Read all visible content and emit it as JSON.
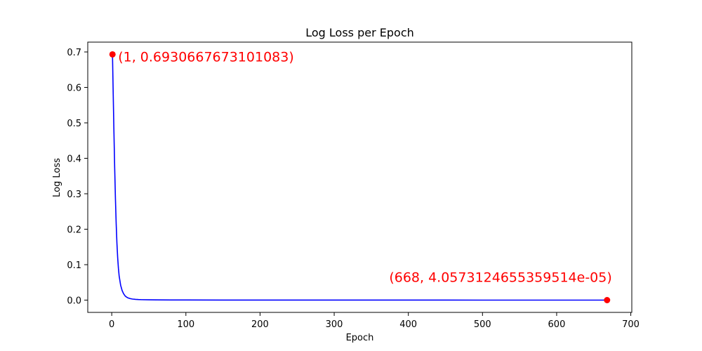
{
  "chart_data": {
    "type": "line",
    "title": "Log Loss per Epoch",
    "xlabel": "Epoch",
    "ylabel": "Log Loss",
    "xlim": [
      -32.35,
      701.35
    ],
    "ylim": [
      -0.0346,
      0.7277
    ],
    "xticks": [
      0,
      100,
      200,
      300,
      400,
      500,
      600,
      700
    ],
    "yticks": [
      0.0,
      0.1,
      0.2,
      0.3,
      0.4,
      0.5,
      0.6,
      0.7
    ],
    "xtick_labels": [
      "0",
      "100",
      "200",
      "300",
      "400",
      "500",
      "600",
      "700"
    ],
    "ytick_labels": [
      "0.0",
      "0.1",
      "0.2",
      "0.3",
      "0.4",
      "0.5",
      "0.6",
      "0.7"
    ],
    "grid": false,
    "series": [
      {
        "color": "#0000ff",
        "x": [
          1,
          2,
          3,
          4,
          5,
          6,
          7,
          8,
          9,
          10,
          12,
          14,
          16,
          18,
          20,
          22,
          25,
          28,
          32,
          36,
          40,
          50,
          60,
          80,
          100,
          150,
          200,
          300,
          400,
          500,
          600,
          668
        ],
        "y": [
          0.693,
          0.58,
          0.47,
          0.37,
          0.285,
          0.215,
          0.16,
          0.12,
          0.09,
          0.068,
          0.042,
          0.027,
          0.018,
          0.012,
          0.0085,
          0.0062,
          0.0042,
          0.003,
          0.0021,
          0.0016,
          0.0013,
          0.0009,
          0.0007,
          0.0005,
          0.0004,
          0.00025,
          0.00018,
          0.00011,
          8e-05,
          6e-05,
          4.7e-05,
          4.06e-05
        ]
      }
    ],
    "highlight_color": "#ff0000",
    "annotations": [
      {
        "x": 1,
        "y": 0.6930667673101083,
        "label": "(1, 0.6930667673101083)"
      },
      {
        "x": 668,
        "y": 4.0573124655359514e-05,
        "label": "(668, 4.0573124655359514e-05)"
      }
    ]
  }
}
